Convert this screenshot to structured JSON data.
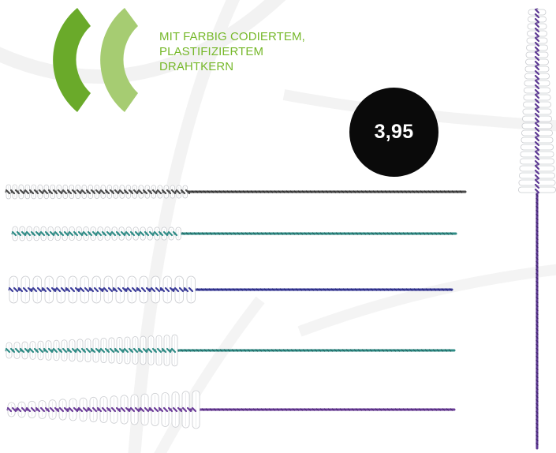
{
  "tagline": {
    "lines": [
      "MIT FARBIG CODIERTEM,",
      "PLASTIFIZIERTEM",
      "DRAHTKERN"
    ]
  },
  "price": {
    "label": "3,95"
  },
  "colors": {
    "brand_green_dark": "#6aaa2a",
    "brand_green_light": "#a6cc72",
    "tagline_green": "#76b82a",
    "badge_black": "#0a0a0a",
    "background_lines": "#f1f1f1"
  },
  "products": [
    {
      "name": "interdental-brush-grey",
      "wire_color": "#4a4a4a",
      "accent_color": "#2a2a2a"
    },
    {
      "name": "interdental-brush-teal",
      "wire_color": "#2f8c86",
      "accent_color": "#1e5f5b"
    },
    {
      "name": "interdental-brush-blue",
      "wire_color": "#3b3c99",
      "accent_color": "#232476"
    },
    {
      "name": "interdental-brush-teal-conical",
      "wire_color": "#2f8c86",
      "accent_color": "#1e5f5b"
    },
    {
      "name": "interdental-brush-purple-conical",
      "wire_color": "#6b3c98",
      "accent_color": "#472570"
    },
    {
      "name": "interdental-brush-purple-vertical",
      "wire_color": "#5e3a94",
      "accent_color": "#3d2168"
    }
  ]
}
